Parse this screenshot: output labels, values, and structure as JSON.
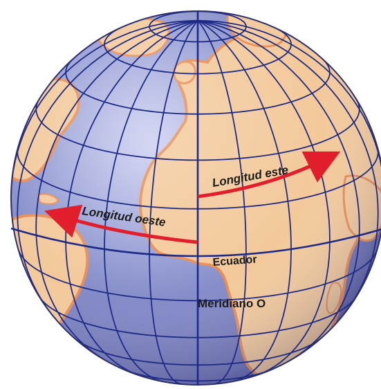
{
  "diagram": {
    "labels": {
      "east_longitude": "Longitud este",
      "west_longitude": "Longitud oeste",
      "equator": "Ecuador",
      "meridian": "Meridiano O"
    },
    "colors": {
      "ocean": "#7d86c2",
      "land": "#f3c99a",
      "land_edge": "#e88c52",
      "grid": "#1d2a86",
      "arrow": "#e21e2c"
    }
  }
}
